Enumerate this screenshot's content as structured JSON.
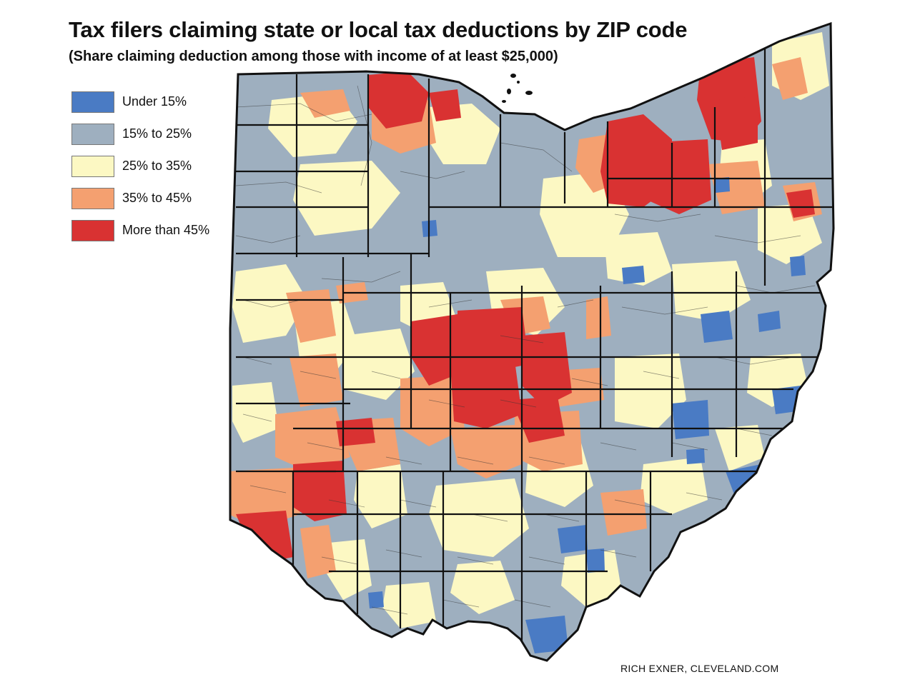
{
  "header": {
    "title": "Tax filers claiming state or local tax deductions by ZIP code",
    "subtitle": "(Share claiming deduction among those with income of at least $25,000)"
  },
  "legend": {
    "items": [
      {
        "label": "Under 15%",
        "color": "#4a7bc4"
      },
      {
        "label": "15% to 25%",
        "color": "#9eafbf"
      },
      {
        "label": "25% to 35%",
        "color": "#fcf8c3"
      },
      {
        "label": "35% to 45%",
        "color": "#f4a070"
      },
      {
        "label": "More than 45%",
        "color": "#d93232"
      }
    ]
  },
  "map": {
    "region": "Ohio",
    "outline_color": "#111111",
    "lake_color": "#ffffff"
  },
  "credit": "RICH EXNER, CLEVELAND.COM"
}
